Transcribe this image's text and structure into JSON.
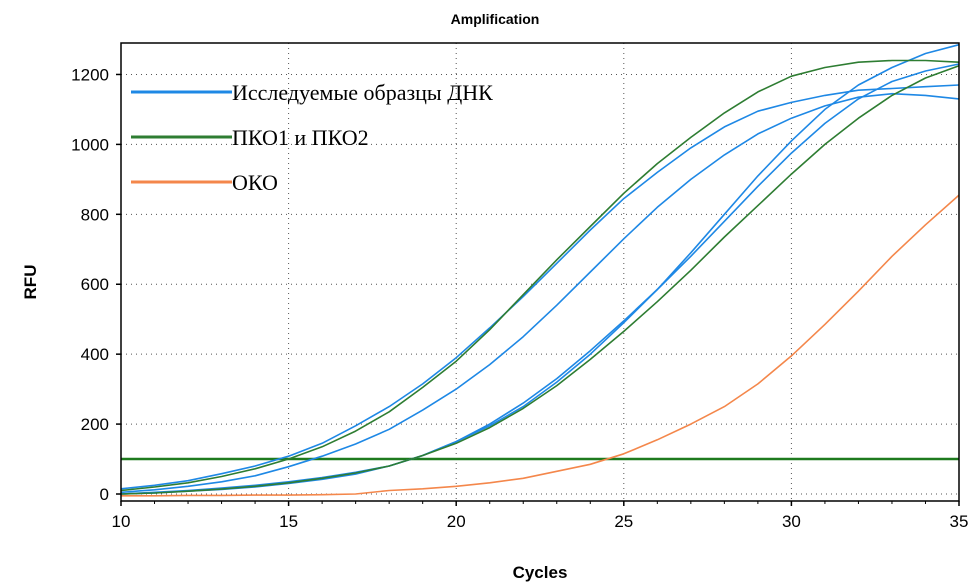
{
  "chart_data": {
    "type": "line",
    "title": "Amplification",
    "xlabel": "Cycles",
    "ylabel": "RFU",
    "xlim": [
      10,
      35
    ],
    "ylim": [
      -20,
      1290
    ],
    "x_ticks": [
      10,
      15,
      20,
      25,
      30,
      35
    ],
    "y_ticks": [
      0,
      200,
      400,
      600,
      800,
      1000,
      1200
    ],
    "grid": "dotted",
    "legend_placement": "top-left",
    "threshold": {
      "value": 100,
      "color": "#1e7a1e"
    },
    "legend": [
      {
        "label": "Исследуемые образцы ДНК",
        "color": "#1e88e5"
      },
      {
        "label": "ПКО1 и ПКО2",
        "color": "#2e7d32"
      },
      {
        "label": "ОКО",
        "color": "#f4874b"
      }
    ],
    "x": [
      10,
      11,
      12,
      13,
      14,
      15,
      16,
      17,
      18,
      19,
      20,
      21,
      22,
      23,
      24,
      25,
      26,
      27,
      28,
      29,
      30,
      31,
      32,
      33,
      34,
      35
    ],
    "series": [
      {
        "group": "Исследуемые образцы ДНК",
        "color": "#1e88e5",
        "values": [
          15,
          25,
          38,
          58,
          80,
          108,
          145,
          195,
          250,
          315,
          390,
          475,
          565,
          660,
          755,
          845,
          920,
          990,
          1050,
          1095,
          1120,
          1140,
          1155,
          1160,
          1165,
          1170
        ]
      },
      {
        "group": "Исследуемые образцы ДНК",
        "color": "#1e88e5",
        "values": [
          5,
          12,
          22,
          35,
          52,
          78,
          108,
          143,
          185,
          240,
          300,
          370,
          450,
          540,
          635,
          730,
          820,
          900,
          970,
          1030,
          1075,
          1110,
          1135,
          1145,
          1140,
          1130
        ]
      },
      {
        "group": "Исследуемые образцы ДНК",
        "color": "#1e88e5",
        "values": [
          0,
          5,
          10,
          17,
          25,
          35,
          47,
          62,
          80,
          110,
          150,
          200,
          260,
          330,
          410,
          495,
          585,
          680,
          780,
          880,
          975,
          1060,
          1130,
          1180,
          1210,
          1230
        ]
      },
      {
        "group": "Исследуемые образцы ДНК",
        "color": "#1e88e5",
        "values": [
          0,
          3,
          8,
          13,
          20,
          30,
          42,
          57,
          80,
          110,
          150,
          195,
          250,
          320,
          400,
          490,
          585,
          690,
          800,
          910,
          1010,
          1100,
          1170,
          1220,
          1260,
          1285
        ]
      },
      {
        "group": "ПКО1 и ПКО2",
        "color": "#2e7d32",
        "values": [
          10,
          20,
          32,
          50,
          72,
          100,
          135,
          180,
          235,
          305,
          380,
          470,
          570,
          670,
          765,
          860,
          945,
          1020,
          1090,
          1150,
          1195,
          1220,
          1235,
          1240,
          1240,
          1235
        ]
      },
      {
        "group": "ПКО1 и ПКО2",
        "color": "#2e7d32",
        "values": [
          0,
          3,
          8,
          14,
          22,
          32,
          45,
          60,
          80,
          110,
          145,
          190,
          245,
          310,
          385,
          465,
          550,
          640,
          735,
          825,
          915,
          1000,
          1075,
          1140,
          1190,
          1225
        ]
      },
      {
        "group": "ОКО",
        "color": "#f4874b",
        "values": [
          -5,
          -5,
          -4,
          -4,
          -3,
          -3,
          -2,
          0,
          10,
          15,
          22,
          32,
          45,
          65,
          85,
          115,
          155,
          200,
          250,
          315,
          395,
          485,
          580,
          680,
          770,
          855
        ]
      }
    ]
  }
}
